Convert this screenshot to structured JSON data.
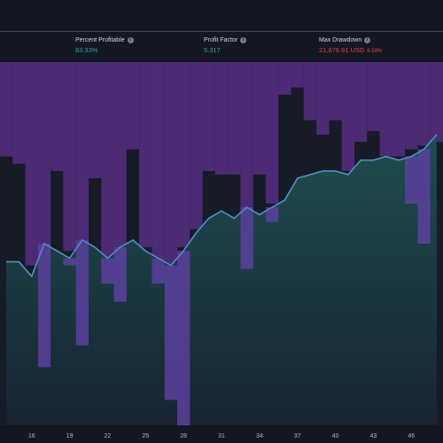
{
  "header": {
    "stats": [
      {
        "label": "Percent Profitable",
        "value": "83.33%"
      },
      {
        "label": "Profit Factor",
        "value": "5.317"
      },
      {
        "label": "Max Drawdown",
        "value": "21,876.91 USD",
        "extra": "8.59%"
      }
    ]
  },
  "chart_data": {
    "type": "combo",
    "categories": [
      null,
      null,
      "16",
      null,
      null,
      "19",
      null,
      null,
      "22",
      null,
      null,
      "25",
      null,
      null,
      "28",
      null,
      null,
      "31",
      null,
      null,
      "34",
      null,
      null,
      "37",
      null,
      null,
      "40",
      null,
      null,
      "43",
      null,
      null,
      "46",
      null,
      null
    ],
    "ylim": [
      0,
      100
    ],
    "series": [
      {
        "type": "bar",
        "base": "top",
        "color": "#4d2a74",
        "values": [
          74,
          72,
          44,
          46,
          70,
          48,
          49,
          68,
          46,
          46,
          76,
          49,
          46,
          44,
          49,
          54,
          70,
          69,
          69,
          59,
          69,
          61,
          91,
          93,
          84,
          80,
          84,
          70,
          78,
          81,
          74,
          74,
          76,
          77,
          78
        ]
      },
      {
        "type": "area",
        "color": "#4a8fc0",
        "values": [
          45,
          45,
          41,
          50,
          48,
          46,
          51,
          49,
          46,
          49,
          51,
          48,
          46,
          44,
          48,
          53,
          57,
          59,
          57,
          60,
          58,
          60,
          62,
          68,
          69,
          70,
          70,
          69,
          73,
          73,
          74,
          73,
          74,
          76,
          80
        ]
      },
      {
        "type": "bar",
        "base_series": 1,
        "color": "#5b3f9e",
        "values": [
          null,
          null,
          null,
          16,
          null,
          44,
          22,
          null,
          39,
          34,
          null,
          null,
          39,
          7,
          0,
          null,
          null,
          null,
          null,
          43,
          null,
          56,
          null,
          null,
          null,
          null,
          null,
          null,
          null,
          null,
          null,
          null,
          61,
          50,
          null
        ]
      }
    ]
  }
}
